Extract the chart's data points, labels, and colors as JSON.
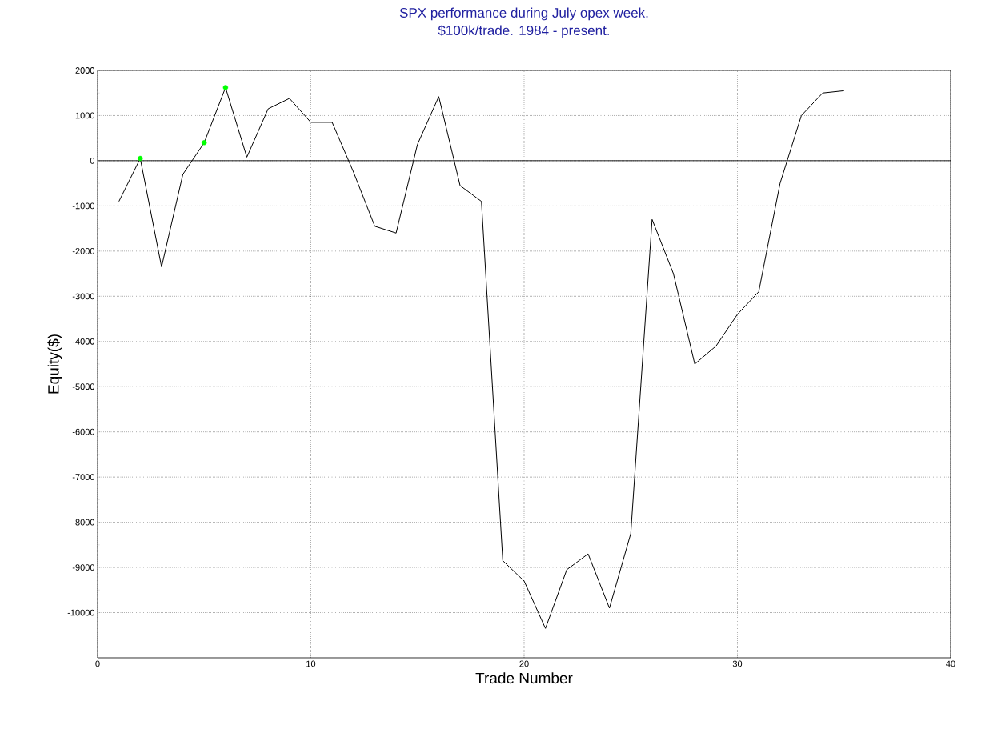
{
  "chart_data": {
    "type": "line",
    "title": "SPX performance during July opex week.",
    "subtitle": "$100k/trade. 1984 - present.",
    "xlabel": "Trade Number",
    "ylabel": "Equity($)",
    "xlim": [
      0,
      40
    ],
    "ylim": [
      -11000,
      2000
    ],
    "xticks": [
      0,
      10,
      20,
      30,
      40
    ],
    "yticks": [
      -10000,
      -9000,
      -8000,
      -7000,
      -6000,
      -5000,
      -4000,
      -3000,
      -2000,
      -1000,
      0,
      1000,
      2000
    ],
    "grid": true,
    "ref_lines": [
      {
        "axis": "y",
        "value": 0,
        "color": "#000000",
        "line_style": "solid"
      }
    ],
    "series": [
      {
        "color": "#000000",
        "marker": "none",
        "x": [
          1,
          2,
          3,
          4,
          5,
          6,
          7,
          8,
          9,
          10,
          11,
          12,
          13,
          14,
          15,
          16,
          17,
          18,
          19,
          20,
          21,
          22,
          23,
          24,
          25,
          26,
          27,
          28,
          29,
          30,
          31,
          32,
          33,
          34,
          35
        ],
        "values": [
          -900,
          50,
          -2350,
          -300,
          400,
          1620,
          80,
          1150,
          1380,
          850,
          850,
          -250,
          -1450,
          -1600,
          360,
          1420,
          -550,
          -900,
          -8850,
          -9300,
          -10350,
          -9050,
          -8700,
          -9900,
          -8250,
          -1300,
          -2500,
          -4500,
          -4100,
          -3400,
          -2900,
          -500,
          1000,
          1500,
          1550
        ]
      },
      {
        "type": "scatter",
        "color": "#00ff00",
        "marker": "circle",
        "x": [
          2,
          5,
          6
        ],
        "values": [
          50,
          400,
          1620
        ]
      }
    ]
  }
}
